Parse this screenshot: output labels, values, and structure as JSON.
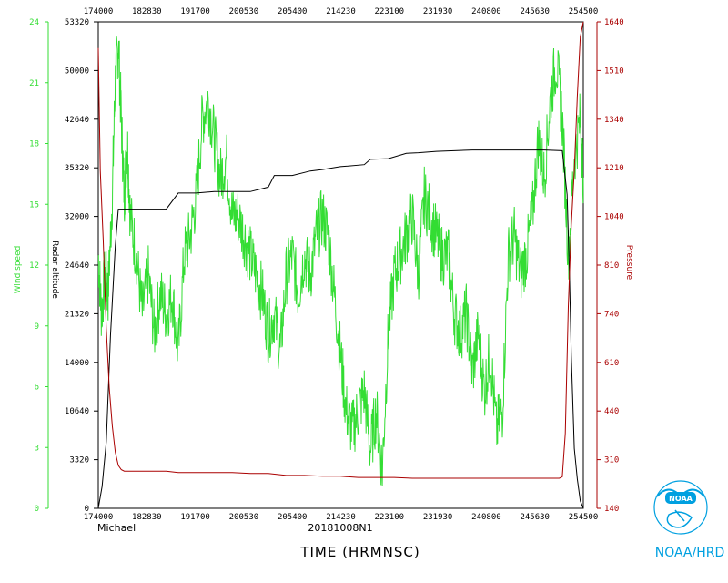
{
  "chart_data": {
    "type": "line",
    "storm_name": "Michael",
    "flight_id": "20181008N1",
    "xlabel": "TIME (HRMNSC)",
    "logo_text": "NOAA",
    "org_label": "NOAA/HRD",
    "x_ticks": [
      "174000",
      "182830",
      "191700",
      "200530",
      "205400",
      "214230",
      "223100",
      "231930",
      "240800",
      "245630",
      "254500"
    ],
    "x_range": [
      "17:40:00",
      "25:45:00"
    ],
    "left_axis_1": {
      "label": "Wind speed",
      "color": "#33dd33",
      "ticks": [
        "0",
        "3",
        "6",
        "9",
        "12",
        "15",
        "18",
        "21",
        "24"
      ],
      "ylim": [
        0,
        25
      ]
    },
    "left_axis_2": {
      "label": "Radar altitude",
      "color": "#000000",
      "ticks": [
        "0",
        "3320",
        "10640",
        "14000",
        "21320",
        "24640",
        "32000",
        "35320",
        "42640",
        "50000",
        "53320"
      ]
    },
    "right_axis": {
      "label": "Pressure",
      "color": "#aa0000",
      "ticks": [
        "140",
        "310",
        "440",
        "610",
        "740",
        "810",
        "1040",
        "1210",
        "1340",
        "1510",
        "1640"
      ]
    },
    "series": [
      {
        "name": "Wind speed",
        "axis": "left_axis_1",
        "color": "#33dd33",
        "x_hours": [
          17.667,
          17.72,
          17.78,
          17.83,
          17.9,
          17.95,
          18.0,
          18.05,
          18.1,
          18.15,
          18.2,
          18.3,
          18.4,
          18.5,
          18.6,
          18.7,
          18.8,
          18.9,
          19.0,
          19.1,
          19.2,
          19.3,
          19.4,
          19.5,
          19.6,
          19.7,
          19.8,
          19.9,
          20.0,
          20.1,
          20.2,
          20.3,
          20.4,
          20.5,
          20.6,
          20.7,
          20.8,
          20.9,
          21.0,
          21.1,
          21.2,
          21.3,
          21.4,
          21.5,
          21.6,
          21.7,
          21.8,
          21.9,
          22.0,
          22.1,
          22.2,
          22.3,
          22.4,
          22.5,
          22.6,
          22.7,
          22.8,
          22.9,
          23.0,
          23.1,
          23.2,
          23.3,
          23.4,
          23.5,
          23.6,
          23.7,
          23.8,
          23.9,
          24.0,
          24.1,
          24.2,
          24.3,
          24.4,
          24.5,
          24.6,
          24.7,
          24.8,
          24.9,
          25.0,
          25.1,
          25.2,
          25.3,
          25.4,
          25.5,
          25.6,
          25.7,
          25.75
        ],
        "values": [
          13,
          10,
          12,
          11,
          16,
          22,
          24,
          20,
          16,
          19,
          15,
          13,
          10,
          12,
          9,
          11,
          10,
          11,
          8,
          13,
          14,
          16,
          20,
          21,
          19,
          17,
          18,
          15,
          15,
          14,
          13,
          12,
          11,
          9,
          10,
          8,
          12,
          13,
          11,
          13,
          12,
          14,
          15,
          14,
          11,
          8,
          5,
          4,
          5,
          6,
          3,
          5,
          2,
          9,
          12,
          13,
          14,
          15,
          12,
          16,
          15,
          14,
          13,
          13,
          10,
          9,
          10,
          7,
          9,
          6,
          8,
          4,
          5,
          13,
          14,
          12,
          13,
          15,
          19,
          17,
          21,
          23,
          20,
          13,
          18,
          20,
          17
        ]
      },
      {
        "name": "Radar altitude",
        "axis": "left_axis_2",
        "color": "#000000",
        "x_hours": [
          17.667,
          17.73,
          17.8,
          17.87,
          17.95,
          18.0,
          18.05,
          18.3,
          18.5,
          18.8,
          19.0,
          19.3,
          19.6,
          19.9,
          20.2,
          20.5,
          20.6,
          20.9,
          21.2,
          21.4,
          21.7,
          22.1,
          22.2,
          22.5,
          22.8,
          23.0,
          23.3,
          23.6,
          23.9,
          24.2,
          24.5,
          24.8,
          25.1,
          25.4,
          25.48,
          25.52,
          25.55,
          25.6,
          25.65,
          25.7,
          25.75
        ],
        "values": [
          0,
          1500,
          6000,
          18000,
          27500,
          32500,
          32500,
          32500,
          32500,
          32500,
          33600,
          33600,
          33700,
          33700,
          33700,
          34000,
          34800,
          34800,
          35100,
          35200,
          35500,
          35800,
          36600,
          36700,
          37500,
          37600,
          37800,
          37900,
          38000,
          38000,
          38000,
          38000,
          38000,
          37900,
          33500,
          24000,
          15000,
          5000,
          2000,
          500,
          0
        ]
      },
      {
        "name": "Pressure",
        "axis": "right_axis",
        "color": "#aa0000",
        "x_hours": [
          17.667,
          17.7,
          17.75,
          17.8,
          17.85,
          17.9,
          17.95,
          18.0,
          18.05,
          18.1,
          18.3,
          18.6,
          18.8,
          19.0,
          19.3,
          19.6,
          19.9,
          20.2,
          20.5,
          20.8,
          21.1,
          21.4,
          21.7,
          22.0,
          22.3,
          22.6,
          22.9,
          23.2,
          23.5,
          23.8,
          24.1,
          24.4,
          24.7,
          25.0,
          25.2,
          25.35,
          25.4,
          25.45,
          25.5,
          25.55,
          25.6,
          25.65,
          25.7,
          25.75
        ],
        "values": [
          1570,
          1200,
          920,
          700,
          520,
          400,
          330,
          290,
          275,
          270,
          270,
          270,
          270,
          265,
          265,
          265,
          265,
          262,
          262,
          255,
          255,
          252,
          252,
          248,
          248,
          248,
          245,
          245,
          245,
          245,
          245,
          245,
          245,
          245,
          245,
          245,
          250,
          380,
          750,
          1000,
          1200,
          1420,
          1600,
          1660
        ]
      }
    ]
  }
}
